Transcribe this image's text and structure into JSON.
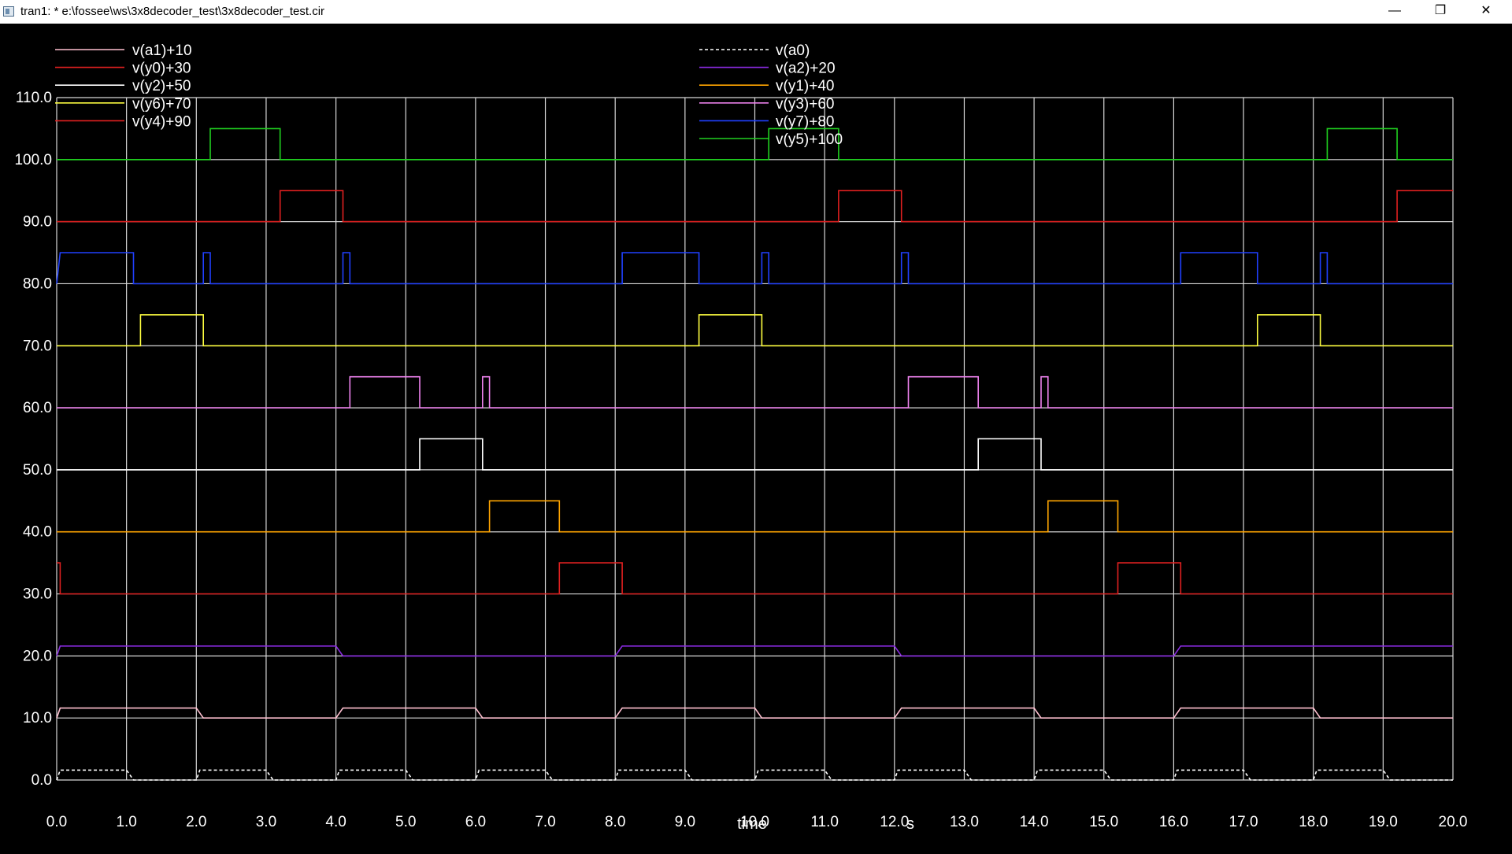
{
  "window": {
    "title": "tran1: * e:\\fossee\\ws\\3x8decoder_test\\3x8decoder_test.cir",
    "icons": {
      "app": "waveform-window-icon",
      "minimize": "minimize-icon",
      "maximize": "restore-icon",
      "close": "close-icon"
    }
  },
  "colors": {
    "background": "#000000",
    "grid": "#d8d8d8",
    "axis_text": "#ffffff"
  },
  "chart_data": {
    "type": "line",
    "xlabel": "time",
    "xunit": "s",
    "ylabel": "",
    "xlim": [
      0,
      20
    ],
    "ylim": [
      0,
      110
    ],
    "grid": true,
    "legend_placement": "top-left, two columns",
    "x_ticks": [
      "0.0",
      "1.0",
      "2.0",
      "3.0",
      "4.0",
      "5.0",
      "6.0",
      "7.0",
      "8.0",
      "9.0",
      "10.0",
      "11.0",
      "12.0",
      "13.0",
      "14.0",
      "15.0",
      "16.0",
      "17.0",
      "18.0",
      "19.0",
      "20.0"
    ],
    "y_ticks": [
      "0.0",
      "10.0",
      "20.0",
      "30.0",
      "40.0",
      "50.0",
      "60.0",
      "70.0",
      "80.0",
      "90.0",
      "100.0",
      "110.0"
    ],
    "series": [
      {
        "name": "v(a1)+10",
        "color": "#ffc0d0",
        "dashed": false,
        "points": [
          [
            0,
            10
          ],
          [
            0.05,
            11.6
          ],
          [
            2.0,
            11.6
          ],
          [
            2.1,
            10
          ],
          [
            4.0,
            10
          ],
          [
            4.1,
            11.6
          ],
          [
            6.0,
            11.6
          ],
          [
            6.1,
            10
          ],
          [
            8.0,
            10
          ],
          [
            8.1,
            11.6
          ],
          [
            10.0,
            11.6
          ],
          [
            10.1,
            10
          ],
          [
            12.0,
            10
          ],
          [
            12.1,
            11.6
          ],
          [
            14.0,
            11.6
          ],
          [
            14.1,
            10
          ],
          [
            16.0,
            10
          ],
          [
            16.1,
            11.6
          ],
          [
            18.0,
            11.6
          ],
          [
            18.1,
            10
          ],
          [
            20,
            10
          ]
        ]
      },
      {
        "name": "v(y0)+30",
        "color": "#e02020",
        "dashed": false,
        "points": [
          [
            0,
            35
          ],
          [
            0.05,
            35
          ],
          [
            0.05,
            30
          ],
          [
            7.2,
            30
          ],
          [
            7.2,
            35
          ],
          [
            8.1,
            35
          ],
          [
            8.1,
            30
          ],
          [
            15.2,
            30
          ],
          [
            15.2,
            35
          ],
          [
            16.1,
            35
          ],
          [
            16.1,
            30
          ],
          [
            20,
            30
          ]
        ]
      },
      {
        "name": "v(y2)+50",
        "color": "#ffffff",
        "dashed": false,
        "points": [
          [
            0,
            50
          ],
          [
            5.2,
            50
          ],
          [
            5.2,
            55
          ],
          [
            6.1,
            55
          ],
          [
            6.1,
            50
          ],
          [
            13.2,
            50
          ],
          [
            13.2,
            55
          ],
          [
            14.1,
            55
          ],
          [
            14.1,
            50
          ],
          [
            20,
            50
          ]
        ]
      },
      {
        "name": "v(y6)+70",
        "color": "#ffff40",
        "dashed": false,
        "points": [
          [
            0,
            70
          ],
          [
            1.2,
            70
          ],
          [
            1.2,
            75
          ],
          [
            2.1,
            75
          ],
          [
            2.1,
            70
          ],
          [
            9.2,
            70
          ],
          [
            9.2,
            75
          ],
          [
            10.1,
            75
          ],
          [
            10.1,
            70
          ],
          [
            17.2,
            70
          ],
          [
            17.2,
            75
          ],
          [
            18.1,
            75
          ],
          [
            18.1,
            70
          ],
          [
            20,
            70
          ]
        ]
      },
      {
        "name": "v(y4)+90",
        "color": "#e02020",
        "dashed": false,
        "points": [
          [
            0,
            90
          ],
          [
            3.2,
            90
          ],
          [
            3.2,
            95
          ],
          [
            4.1,
            95
          ],
          [
            4.1,
            90
          ],
          [
            11.2,
            90
          ],
          [
            11.2,
            95
          ],
          [
            12.1,
            95
          ],
          [
            12.1,
            90
          ],
          [
            19.2,
            90
          ],
          [
            19.2,
            95
          ],
          [
            20,
            95
          ]
        ]
      },
      {
        "name": "v(a0)",
        "color": "#ffffff",
        "dashed": true,
        "points": [
          [
            0,
            0
          ],
          [
            0.05,
            1.6
          ],
          [
            1.0,
            1.6
          ],
          [
            1.1,
            0
          ],
          [
            2.0,
            0
          ],
          [
            2.05,
            1.6
          ],
          [
            3.0,
            1.6
          ],
          [
            3.1,
            0
          ],
          [
            4.0,
            0
          ],
          [
            4.05,
            1.6
          ],
          [
            5.0,
            1.6
          ],
          [
            5.1,
            0
          ],
          [
            6.0,
            0
          ],
          [
            6.05,
            1.6
          ],
          [
            7.0,
            1.6
          ],
          [
            7.1,
            0
          ],
          [
            8.0,
            0
          ],
          [
            8.05,
            1.6
          ],
          [
            9.0,
            1.6
          ],
          [
            9.1,
            0
          ],
          [
            10.0,
            0
          ],
          [
            10.05,
            1.6
          ],
          [
            11.0,
            1.6
          ],
          [
            11.1,
            0
          ],
          [
            12.0,
            0
          ],
          [
            12.05,
            1.6
          ],
          [
            13.0,
            1.6
          ],
          [
            13.1,
            0
          ],
          [
            14.0,
            0
          ],
          [
            14.05,
            1.6
          ],
          [
            15.0,
            1.6
          ],
          [
            15.1,
            0
          ],
          [
            16.0,
            0
          ],
          [
            16.05,
            1.6
          ],
          [
            17.0,
            1.6
          ],
          [
            17.1,
            0
          ],
          [
            18.0,
            0
          ],
          [
            18.05,
            1.6
          ],
          [
            19.0,
            1.6
          ],
          [
            19.1,
            0
          ],
          [
            20,
            0
          ]
        ]
      },
      {
        "name": "v(a2)+20",
        "color": "#8a2be2",
        "dashed": false,
        "points": [
          [
            0,
            20
          ],
          [
            0.05,
            21.6
          ],
          [
            4.0,
            21.6
          ],
          [
            4.1,
            20
          ],
          [
            8.0,
            20
          ],
          [
            8.1,
            21.6
          ],
          [
            12.0,
            21.6
          ],
          [
            12.1,
            20
          ],
          [
            16.0,
            20
          ],
          [
            16.1,
            21.6
          ],
          [
            20,
            21.6
          ]
        ]
      },
      {
        "name": "v(y1)+40",
        "color": "#ffa500",
        "dashed": false,
        "points": [
          [
            0,
            40
          ],
          [
            6.2,
            40
          ],
          [
            6.2,
            45
          ],
          [
            7.2,
            45
          ],
          [
            7.2,
            40
          ],
          [
            14.2,
            40
          ],
          [
            14.2,
            45
          ],
          [
            15.2,
            45
          ],
          [
            15.2,
            40
          ],
          [
            20,
            40
          ]
        ]
      },
      {
        "name": "v(y3)+60",
        "color": "#ee82ee",
        "dashed": false,
        "points": [
          [
            0,
            60
          ],
          [
            4.2,
            60
          ],
          [
            4.2,
            65
          ],
          [
            5.2,
            65
          ],
          [
            5.2,
            60
          ],
          [
            6.1,
            60
          ],
          [
            6.1,
            65
          ],
          [
            6.2,
            65
          ],
          [
            6.2,
            60
          ],
          [
            12.2,
            60
          ],
          [
            12.2,
            65
          ],
          [
            13.2,
            65
          ],
          [
            13.2,
            60
          ],
          [
            14.1,
            60
          ],
          [
            14.1,
            65
          ],
          [
            14.2,
            65
          ],
          [
            14.2,
            60
          ],
          [
            20,
            60
          ]
        ]
      },
      {
        "name": "v(y7)+80",
        "color": "#2040ff",
        "dashed": false,
        "points": [
          [
            0,
            80
          ],
          [
            0.05,
            85
          ],
          [
            1.1,
            85
          ],
          [
            1.1,
            80
          ],
          [
            2.1,
            80
          ],
          [
            2.1,
            85
          ],
          [
            2.2,
            85
          ],
          [
            2.2,
            80
          ],
          [
            4.1,
            80
          ],
          [
            4.1,
            85
          ],
          [
            4.2,
            85
          ],
          [
            4.2,
            80
          ],
          [
            8.1,
            80
          ],
          [
            8.1,
            85
          ],
          [
            9.2,
            85
          ],
          [
            9.2,
            80
          ],
          [
            10.1,
            80
          ],
          [
            10.1,
            85
          ],
          [
            10.2,
            85
          ],
          [
            10.2,
            80
          ],
          [
            12.1,
            80
          ],
          [
            12.1,
            85
          ],
          [
            12.2,
            85
          ],
          [
            12.2,
            80
          ],
          [
            16.1,
            80
          ],
          [
            16.1,
            85
          ],
          [
            17.2,
            85
          ],
          [
            17.2,
            80
          ],
          [
            18.1,
            80
          ],
          [
            18.1,
            85
          ],
          [
            18.2,
            85
          ],
          [
            18.2,
            80
          ],
          [
            20,
            80
          ]
        ]
      },
      {
        "name": "v(y5)+100",
        "color": "#20d020",
        "dashed": false,
        "points": [
          [
            0,
            100
          ],
          [
            2.2,
            100
          ],
          [
            2.2,
            105
          ],
          [
            3.2,
            105
          ],
          [
            3.2,
            100
          ],
          [
            10.2,
            100
          ],
          [
            10.2,
            105
          ],
          [
            11.2,
            105
          ],
          [
            11.2,
            100
          ],
          [
            18.2,
            100
          ],
          [
            18.2,
            105
          ],
          [
            19.2,
            105
          ],
          [
            19.2,
            100
          ],
          [
            20,
            100
          ]
        ]
      }
    ]
  }
}
